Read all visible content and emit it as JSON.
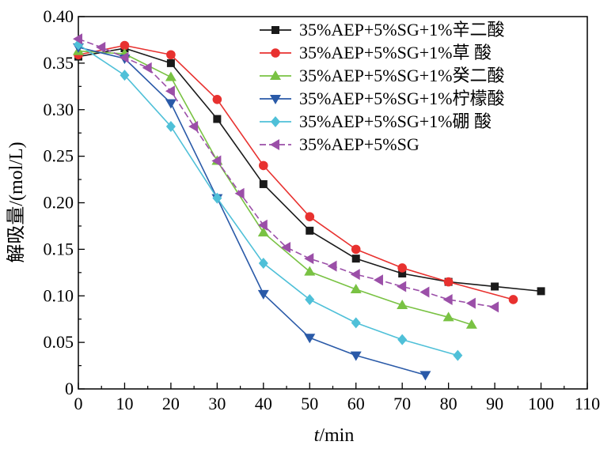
{
  "chart_data": {
    "type": "line",
    "xlabel_italic": "t",
    "xlabel_rest": "/min",
    "ylabel": "解吸量/(mol/L)",
    "xlim": [
      0,
      110
    ],
    "ylim": [
      0,
      0.4
    ],
    "xticks": [
      "0",
      "10",
      "20",
      "30",
      "40",
      "50",
      "60",
      "70",
      "80",
      "90",
      "100",
      "110"
    ],
    "yticks": [
      "0",
      "0.05",
      "0.10",
      "0.15",
      "0.20",
      "0.25",
      "0.30",
      "0.35",
      "0.40"
    ],
    "legend_position": "top-right",
    "grid": false,
    "series": [
      {
        "name": "35%AEP+5%SG+1%辛二酸",
        "color": "#1a1a1a",
        "marker": "square",
        "dashed": false,
        "x": [
          0,
          10,
          20,
          30,
          40,
          50,
          60,
          70,
          80,
          90,
          100
        ],
        "y": [
          0.357,
          0.366,
          0.35,
          0.29,
          0.22,
          0.17,
          0.14,
          0.124,
          0.115,
          0.11,
          0.105
        ]
      },
      {
        "name": "35%AEP+5%SG+1%草  酸",
        "color": "#e8312f",
        "marker": "circle",
        "dashed": false,
        "x": [
          0,
          10,
          20,
          30,
          40,
          50,
          60,
          70,
          80,
          94
        ],
        "y": [
          0.359,
          0.369,
          0.359,
          0.311,
          0.24,
          0.185,
          0.15,
          0.13,
          0.115,
          0.096
        ]
      },
      {
        "name": "35%AEP+5%SG+1%癸二酸",
        "color": "#79c243",
        "marker": "triangle-up",
        "dashed": false,
        "x": [
          0,
          10,
          20,
          30,
          40,
          50,
          60,
          70,
          80,
          85
        ],
        "y": [
          0.363,
          0.36,
          0.335,
          0.245,
          0.168,
          0.126,
          0.107,
          0.09,
          0.077,
          0.069
        ]
      },
      {
        "name": "35%AEP+5%SG+1%柠檬酸",
        "color": "#2a5aa8",
        "marker": "triangle-down",
        "dashed": false,
        "x": [
          0,
          10,
          20,
          30,
          40,
          50,
          60,
          75
        ],
        "y": [
          0.367,
          0.355,
          0.307,
          0.205,
          0.102,
          0.055,
          0.036,
          0.015
        ]
      },
      {
        "name": "35%AEP+5%SG+1%硼  酸",
        "color": "#4fc0d8",
        "marker": "diamond",
        "dashed": false,
        "x": [
          0,
          10,
          20,
          30,
          40,
          50,
          60,
          70,
          82
        ],
        "y": [
          0.37,
          0.337,
          0.282,
          0.205,
          0.135,
          0.096,
          0.071,
          0.053,
          0.036
        ]
      },
      {
        "name": "35%AEP+5%SG",
        "color": "#9b4fa8",
        "marker": "triangle-left",
        "dashed": true,
        "x": [
          0,
          5,
          10,
          15,
          20,
          25,
          30,
          35,
          40,
          45,
          50,
          55,
          60,
          65,
          70,
          75,
          80,
          85,
          90
        ],
        "y": [
          0.376,
          0.367,
          0.356,
          0.345,
          0.32,
          0.282,
          0.245,
          0.21,
          0.176,
          0.152,
          0.14,
          0.132,
          0.123,
          0.117,
          0.11,
          0.104,
          0.096,
          0.092,
          0.088
        ]
      }
    ]
  }
}
